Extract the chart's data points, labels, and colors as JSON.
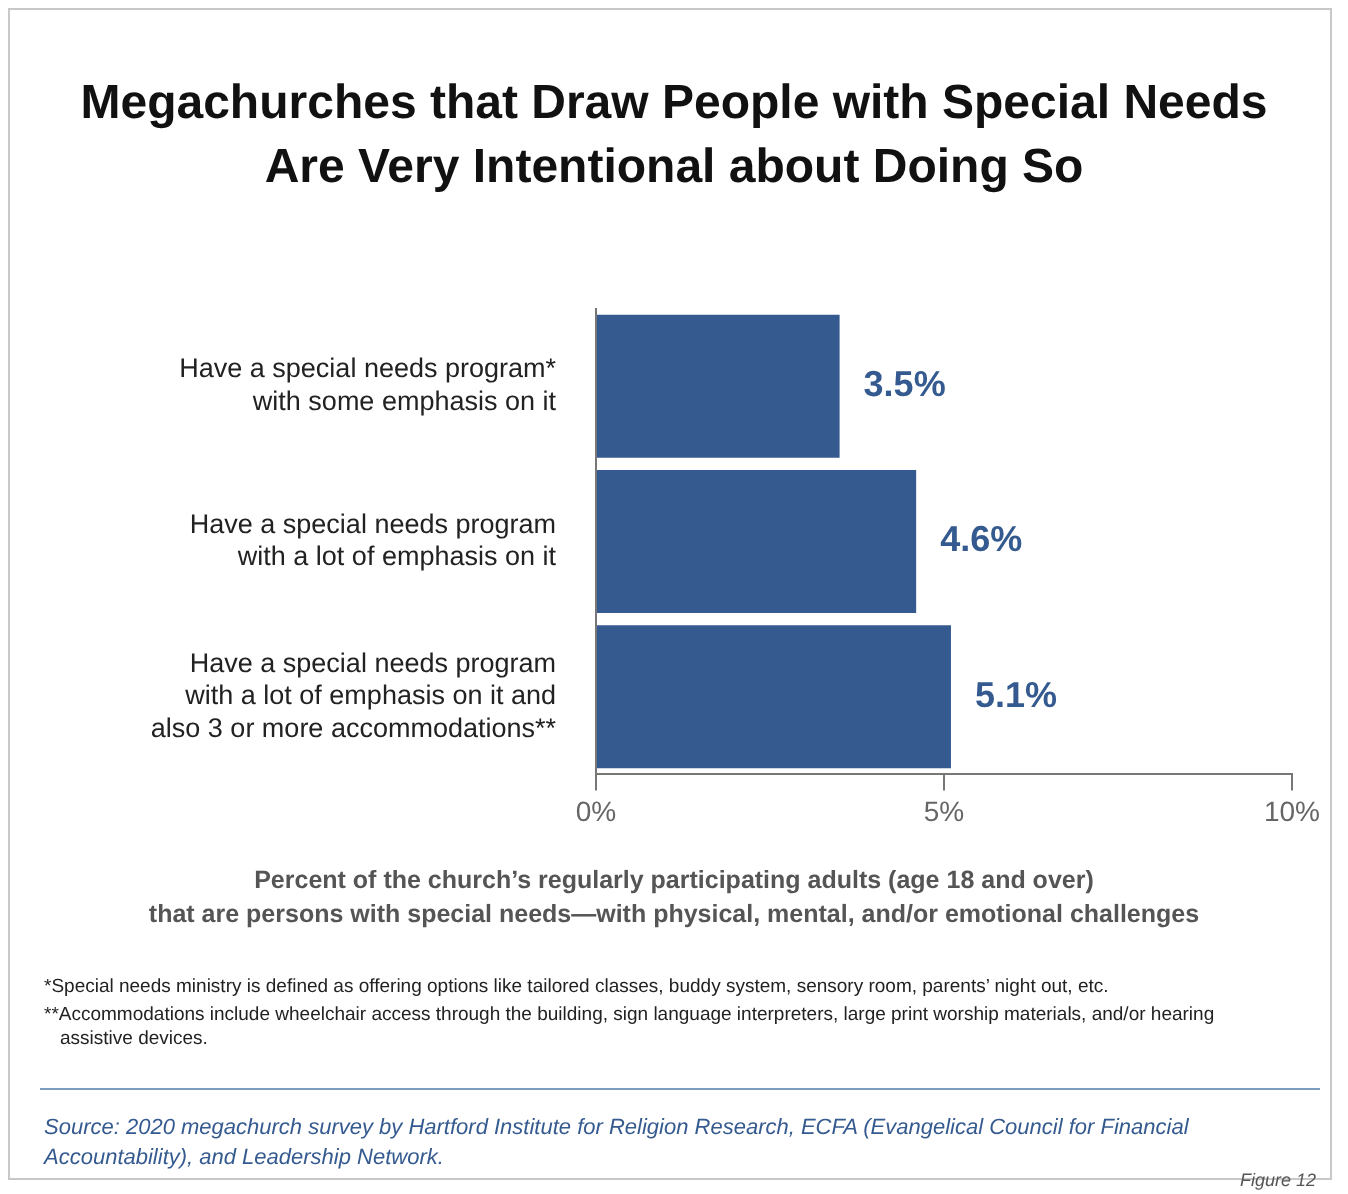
{
  "chart_data": {
    "type": "bar",
    "orientation": "horizontal",
    "title": "Megachurches that Draw People with Special Needs\nAre Very Intentional about Doing So",
    "categories": [
      "Have a special needs program*\nwith some emphasis on it",
      "Have a special needs program\nwith a lot of emphasis on it",
      "Have a special needs program\nwith a lot of emphasis on it and\nalso 3 or more accommodations**"
    ],
    "values": [
      3.5,
      4.6,
      5.1
    ],
    "value_labels": [
      "3.5%",
      "4.6%",
      "5.1%"
    ],
    "color": "#345a8f",
    "xlim": [
      0,
      10
    ],
    "xticks": [
      {
        "value": 0,
        "label": "0%"
      },
      {
        "value": 5,
        "label": "5%"
      },
      {
        "value": 10,
        "label": "10%"
      }
    ],
    "xlabel": "Percent of the church’s regularly participating adults (age 18 and over)\nthat are persons with special needs—with physical, mental, and/or emotional challenges",
    "grid": false,
    "legend": false,
    "annotations": [
      "*Special needs ministry is defined as offering options like tailored classes, buddy system, sensory room, parents’ night out, etc.",
      "**Accommodations include wheelchair access through the building, sign language interpreters, large print worship materials, and/or hearing assistive devices.",
      "Source: 2020 megachurch survey by Hartford Institute for Religion Research, ECFA (Evangelical Council for Financial Accountability), and Leadership Network.",
      "Figure 12"
    ]
  }
}
